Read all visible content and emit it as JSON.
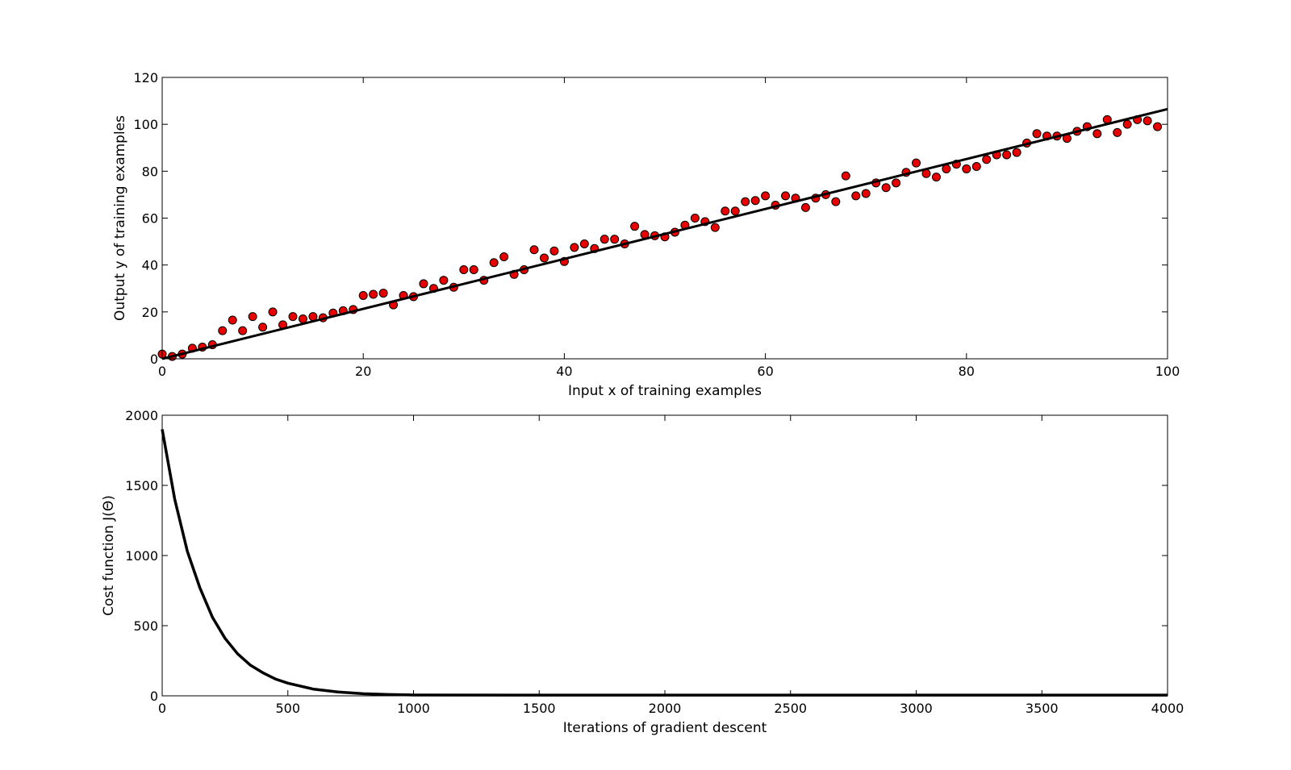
{
  "chart_data": [
    {
      "type": "scatter",
      "xlabel": "Input x of training examples",
      "ylabel": "Output y of training examples",
      "xlim": [
        0,
        100
      ],
      "ylim": [
        0,
        120
      ],
      "xticks": [
        0,
        20,
        40,
        60,
        80,
        100
      ],
      "yticks": [
        0,
        20,
        40,
        60,
        80,
        100,
        120
      ],
      "xtick_labels": [
        "0",
        "20",
        "40",
        "60",
        "80",
        "100"
      ],
      "ytick_labels": [
        "0",
        "20",
        "40",
        "60",
        "80",
        "100",
        "120"
      ],
      "grid": false,
      "colors": {
        "points": "#e60000",
        "line": "#000000"
      },
      "series": [
        {
          "type": "scatter",
          "x": [
            0,
            1,
            2,
            3,
            4,
            5,
            6,
            7,
            8,
            9,
            10,
            11,
            12,
            13,
            14,
            15,
            16,
            17,
            18,
            19,
            20,
            21,
            22,
            23,
            24,
            25,
            26,
            27,
            28,
            29,
            30,
            31,
            32,
            33,
            34,
            35,
            36,
            37,
            38,
            39,
            40,
            41,
            42,
            43,
            44,
            45,
            46,
            47,
            48,
            49,
            50,
            51,
            52,
            53,
            54,
            55,
            56,
            57,
            58,
            59,
            60,
            61,
            62,
            63,
            64,
            65,
            66,
            67,
            68,
            69,
            70,
            71,
            72,
            73,
            74,
            75,
            76,
            77,
            78,
            79,
            80,
            81,
            82,
            83,
            84,
            85,
            86,
            87,
            88,
            89,
            90,
            91,
            92,
            93,
            94,
            95,
            96,
            97,
            98,
            99
          ],
          "y": [
            2,
            1,
            2,
            4.5,
            5,
            6,
            12,
            16.5,
            12,
            18,
            13.5,
            20,
            14.5,
            18,
            17,
            18,
            17.5,
            19.5,
            20.5,
            21,
            27,
            27.5,
            28,
            23,
            27,
            26.5,
            32,
            30,
            33.5,
            30.5,
            38,
            38,
            33.5,
            41,
            43.5,
            36,
            38,
            46.5,
            43,
            46,
            41.5,
            47.5,
            49,
            47,
            51,
            51,
            49,
            56.5,
            53,
            52.5,
            52,
            54,
            57,
            60,
            58.5,
            56,
            63,
            63,
            67,
            67.5,
            69.5,
            65.5,
            69.5,
            68.5,
            64.5,
            68.5,
            70,
            67,
            78,
            69.5,
            70.5,
            75,
            73,
            75,
            79.5,
            83.5,
            79,
            77.5,
            81,
            83,
            81,
            82,
            85,
            87,
            87,
            88,
            92,
            96,
            95,
            95,
            94,
            97,
            99,
            96,
            102,
            96.5,
            100,
            102,
            101.5,
            99
          ]
        },
        {
          "type": "line",
          "x": [
            0,
            100
          ],
          "y": [
            0,
            106.5
          ]
        }
      ]
    },
    {
      "type": "line",
      "xlabel": "Iterations of gradient descent",
      "ylabel": "Cost function J(Θ)",
      "xlim": [
        0,
        4000
      ],
      "ylim": [
        0,
        2000
      ],
      "xticks": [
        0,
        500,
        1000,
        1500,
        2000,
        2500,
        3000,
        3500,
        4000
      ],
      "yticks": [
        0,
        500,
        1000,
        1500,
        2000
      ],
      "xtick_labels": [
        "0",
        "500",
        "1000",
        "1500",
        "2000",
        "2500",
        "3000",
        "3500",
        "4000"
      ],
      "ytick_labels": [
        "0",
        "500",
        "1000",
        "1500",
        "2000"
      ],
      "grid": false,
      "colors": {
        "line": "#000000"
      },
      "series": [
        {
          "type": "line",
          "x": [
            0,
            50,
            100,
            150,
            200,
            250,
            300,
            350,
            400,
            450,
            500,
            600,
            700,
            800,
            900,
            1000,
            1500,
            2000,
            2500,
            3000,
            3500,
            4000
          ],
          "y": [
            1900,
            1400,
            1030,
            770,
            560,
            410,
            300,
            220,
            165,
            120,
            90,
            48,
            27,
            15,
            9,
            6,
            5,
            5,
            5,
            5,
            5,
            5
          ]
        }
      ]
    }
  ]
}
